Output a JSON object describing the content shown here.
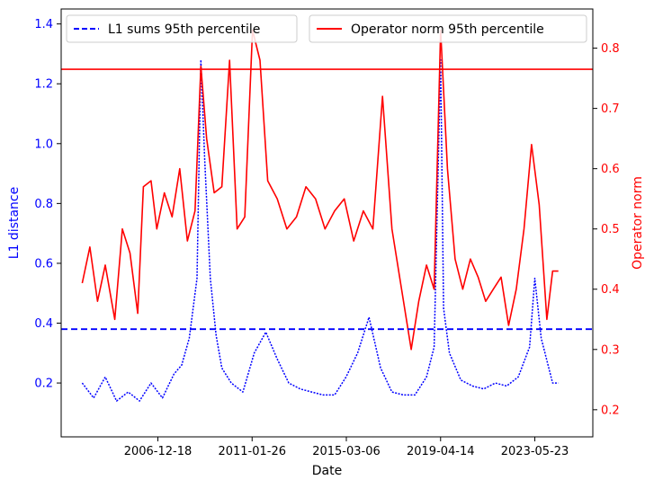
{
  "chart_data": {
    "type": "line",
    "title": "",
    "xlabel": "Date",
    "ylabel_left": "L1 distance",
    "ylabel_right": "Operator norm",
    "x_ticks": [
      "2006-12-18",
      "2011-01-26",
      "2015-03-06",
      "2019-04-14",
      "2023-05-23"
    ],
    "y_left_ticks": [
      "0.2",
      "0.4",
      "0.6",
      "0.8",
      "1.0",
      "1.2",
      "1.4"
    ],
    "y_right_ticks": [
      "0.2",
      "0.3",
      "0.4",
      "0.5",
      "0.6",
      "0.7",
      "0.8"
    ],
    "ylim_left": [
      0.02,
      1.45
    ],
    "ylim_right": [
      0.155,
      0.865
    ],
    "xlim": [
      "2002-10-01",
      "2025-12-01"
    ],
    "colors": {
      "left_axis": "#0000ff",
      "right_axis": "#ff0000"
    },
    "legend": {
      "left": {
        "label": "L1 sums 95th percentile",
        "placement": "upper-left"
      },
      "right": {
        "label": "Operator norm 95th percentile",
        "placement": "upper-right"
      }
    },
    "reference_lines": {
      "l1_95th_percentile": 0.38,
      "operator_norm_95th_percentile": 0.765
    },
    "series": [
      {
        "axis": "left",
        "style": "dotted",
        "color": "#0000ff",
        "x": [
          "2003-09-01",
          "2004-03-01",
          "2004-09-01",
          "2005-03-01",
          "2005-09-01",
          "2006-03-01",
          "2006-09-01",
          "2007-03-01",
          "2007-09-01",
          "2008-01-01",
          "2008-05-01",
          "2008-09-01",
          "2008-11-01",
          "2009-01-01",
          "2009-04-01",
          "2009-07-01",
          "2009-10-01",
          "2010-03-01",
          "2010-09-01",
          "2011-03-01",
          "2011-09-01",
          "2012-03-01",
          "2012-09-01",
          "2013-03-01",
          "2013-09-01",
          "2014-03-01",
          "2014-09-01",
          "2015-03-01",
          "2015-09-01",
          "2016-03-01",
          "2016-09-01",
          "2017-03-01",
          "2017-09-01",
          "2018-03-01",
          "2018-09-01",
          "2019-01-01",
          "2019-04-14",
          "2019-06-01",
          "2019-09-01",
          "2020-03-01",
          "2020-09-01",
          "2021-03-01",
          "2021-09-01",
          "2022-03-01",
          "2022-09-01",
          "2023-03-01",
          "2023-05-23",
          "2023-09-01",
          "2024-03-01",
          "2024-06-01"
        ],
        "y": [
          0.2,
          0.15,
          0.22,
          0.14,
          0.17,
          0.14,
          0.2,
          0.15,
          0.23,
          0.26,
          0.35,
          0.55,
          1.28,
          0.95,
          0.55,
          0.36,
          0.25,
          0.2,
          0.17,
          0.3,
          0.37,
          0.28,
          0.2,
          0.18,
          0.17,
          0.16,
          0.16,
          0.22,
          0.3,
          0.42,
          0.25,
          0.17,
          0.16,
          0.16,
          0.22,
          0.32,
          1.28,
          0.45,
          0.3,
          0.21,
          0.19,
          0.18,
          0.2,
          0.19,
          0.22,
          0.32,
          0.55,
          0.35,
          0.2,
          0.2
        ]
      },
      {
        "axis": "right",
        "style": "solid",
        "color": "#ff0000",
        "x": [
          "2003-09-01",
          "2004-01-01",
          "2004-05-01",
          "2004-09-01",
          "2005-02-01",
          "2005-06-01",
          "2005-10-01",
          "2006-02-01",
          "2006-05-01",
          "2006-09-01",
          "2006-12-01",
          "2007-04-01",
          "2007-08-01",
          "2007-12-01",
          "2008-04-01",
          "2008-08-01",
          "2008-11-01",
          "2009-02-01",
          "2009-06-01",
          "2009-10-01",
          "2010-02-01",
          "2010-06-01",
          "2010-10-01",
          "2011-02-01",
          "2011-06-01",
          "2011-10-01",
          "2012-03-01",
          "2012-08-01",
          "2013-01-01",
          "2013-06-01",
          "2013-11-01",
          "2014-04-01",
          "2014-09-01",
          "2015-02-01",
          "2015-07-01",
          "2015-12-01",
          "2016-05-01",
          "2016-10-01",
          "2017-03-01",
          "2017-08-01",
          "2018-01-01",
          "2018-05-01",
          "2018-09-01",
          "2019-01-01",
          "2019-04-14",
          "2019-08-01",
          "2019-12-01",
          "2020-04-01",
          "2020-08-01",
          "2020-12-01",
          "2021-04-01",
          "2021-08-01",
          "2021-12-01",
          "2022-04-01",
          "2022-08-01",
          "2022-12-01",
          "2023-04-01",
          "2023-08-01",
          "2023-12-01",
          "2024-03-01",
          "2024-06-01"
        ],
        "y": [
          0.41,
          0.47,
          0.38,
          0.44,
          0.35,
          0.5,
          0.46,
          0.36,
          0.57,
          0.58,
          0.5,
          0.56,
          0.52,
          0.6,
          0.48,
          0.53,
          0.77,
          0.65,
          0.56,
          0.57,
          0.78,
          0.5,
          0.52,
          0.83,
          0.78,
          0.58,
          0.55,
          0.5,
          0.52,
          0.57,
          0.55,
          0.5,
          0.53,
          0.55,
          0.48,
          0.53,
          0.5,
          0.72,
          0.5,
          0.4,
          0.3,
          0.38,
          0.44,
          0.4,
          0.83,
          0.6,
          0.45,
          0.4,
          0.45,
          0.42,
          0.38,
          0.4,
          0.42,
          0.34,
          0.4,
          0.5,
          0.64,
          0.54,
          0.35,
          0.43,
          0.43
        ]
      }
    ]
  }
}
